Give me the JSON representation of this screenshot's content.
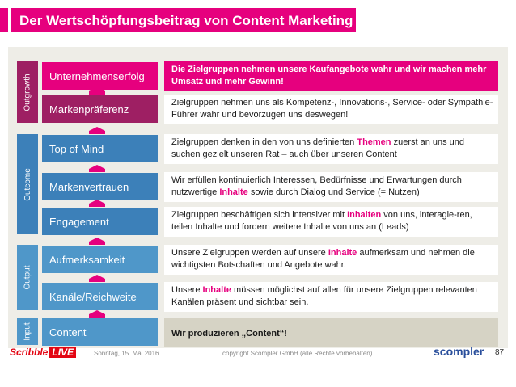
{
  "title": "Der Wertschöpfungsbeitrag von Content Marketing",
  "colors": {
    "pink": "#e6007e",
    "maroon": "#9e1f63",
    "blue": "#3c80b9",
    "light_blue": "#4f97c9",
    "grey_bg": "#eeede7",
    "grey_row": "#d6d3c5"
  },
  "groups": [
    {
      "label": "Outgrowth",
      "color": "#9e1f63"
    },
    {
      "label": "Outcome",
      "color": "#3c80b9"
    },
    {
      "label": "Output",
      "color": "#4f97c9"
    },
    {
      "label": "Input",
      "color": "#4f97c9"
    }
  ],
  "levels": [
    {
      "name": "Unternehmenserfolg",
      "color": "#e6007e",
      "style": "pink",
      "desc": [
        "Die Zielgruppen nehmen unsere Kaufangebote wahr und wir machen mehr Umsatz und mehr Gewinn!"
      ]
    },
    {
      "name": "Markenpräferenz",
      "color": "#9e1f63",
      "style": "white",
      "desc": [
        "Zielgruppen nehmen uns als Kompetenz-, Innovations-, Service- oder Sympathie-Führer wahr und bevorzugen uns deswegen!"
      ]
    },
    {
      "name": "Top of Mind",
      "color": "#3c80b9",
      "style": "white",
      "desc": [
        "Zielgruppen denken in den von uns definierten ",
        "Themen",
        " zuerst an uns und suchen gezielt unseren Rat – auch über unseren Content"
      ]
    },
    {
      "name": "Markenvertrauen",
      "color": "#3c80b9",
      "style": "white",
      "desc": [
        "Wir erfüllen kontinuierlich Interessen, Bedürfnisse und Erwartungen durch nutzwertige ",
        "Inhalte",
        " sowie durch Dialog und Service  (= Nutzen)"
      ]
    },
    {
      "name": "Engagement",
      "color": "#3c80b9",
      "style": "white",
      "desc": [
        "Zielgruppen beschäftigen sich intensiver mit ",
        "Inhalten",
        " von uns, interagie-ren, teilen Inhalte und fordern weitere Inhalte von uns an (Leads)"
      ]
    },
    {
      "name": "Aufmerksamkeit",
      "color": "#4f97c9",
      "style": "white",
      "desc": [
        "Unsere Zielgruppen werden auf unsere ",
        "Inhalte",
        " aufmerksam und nehmen die wichtigsten Botschaften und Angebote wahr."
      ]
    },
    {
      "name": "Kanäle/Reichweite",
      "color": "#4f97c9",
      "style": "white",
      "desc": [
        "Unsere ",
        "Inhalte",
        " müssen möglichst auf allen für unsere Zielgruppen relevanten Kanälen präsent und sichtbar sein."
      ]
    },
    {
      "name": "Content",
      "color": "#4f97c9",
      "style": "grey",
      "desc": [
        "Wir produzieren „Content“!"
      ]
    }
  ],
  "footer": {
    "logo_left_a": "Scribble",
    "logo_left_b": "LIVE",
    "date": "Sonntag, 15. Mai 2016",
    "copyright": "copyright Scompler GmbH (alle Rechte vorbehalten)",
    "logo_right": "scompler",
    "page": "87"
  }
}
